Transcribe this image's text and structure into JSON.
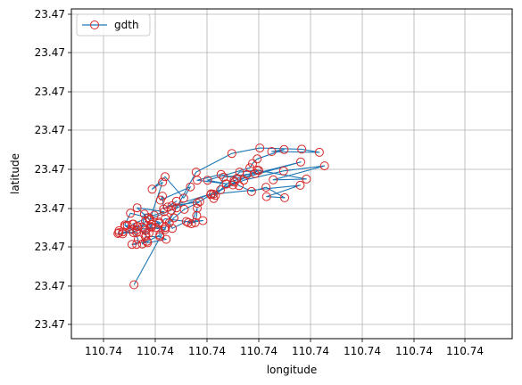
{
  "chart_data": {
    "type": "line",
    "xlabel": "longitude",
    "ylabel": "latitude",
    "x_tick_labels": [
      "110.74",
      "110.74",
      "110.74",
      "110.74",
      "110.74",
      "110.74",
      "110.74",
      "110.74"
    ],
    "y_tick_labels": [
      "23.47",
      "23.47",
      "23.47",
      "23.47",
      "23.47",
      "23.47",
      "23.47",
      "23.47",
      "23.47"
    ],
    "grid": true,
    "legend_position": "top-left",
    "line_color": "#1f77b4",
    "marker_color": "#d62728",
    "series": [
      {
        "name": "gdth",
        "points": [
          [
            0.59,
            1.02
          ],
          [
            1.79,
            3.92
          ],
          [
            2.48,
            4.4
          ],
          [
            3.02,
            4.54
          ],
          [
            3.83,
            4.51
          ],
          [
            4.17,
            4.43
          ],
          [
            3.25,
            4.45
          ],
          [
            3.49,
            4.5
          ],
          [
            2.97,
            4.26
          ],
          [
            2.88,
            4.14
          ],
          [
            2.83,
            4.03
          ],
          [
            2.01,
            3.71
          ],
          [
            2.37,
            3.62
          ],
          [
            1.81,
            3.71
          ],
          [
            2.27,
            3.86
          ],
          [
            2.58,
            3.76
          ],
          [
            3.0,
            3.96
          ],
          [
            2.12,
            3.35
          ],
          [
            3.8,
            3.58
          ],
          [
            3.15,
            3.29
          ],
          [
            3.5,
            3.26
          ],
          [
            3.14,
            3.53
          ],
          [
            2.86,
            3.42
          ],
          [
            2.62,
            3.57
          ],
          [
            2.53,
            3.66
          ],
          [
            2.26,
            3.46
          ],
          [
            2.5,
            3.59
          ],
          [
            2.08,
            3.36
          ],
          [
            1.32,
            3.05
          ],
          [
            1.86,
            3.16
          ],
          [
            1.24,
            3.02
          ],
          [
            1.41,
            3.17
          ],
          [
            1.16,
            2.97
          ],
          [
            1.14,
            3.3
          ],
          [
            1.1,
            3.2
          ],
          [
            1.68,
            3.54
          ],
          [
            1.55,
            3.25
          ],
          [
            1.19,
            3.8
          ],
          [
            0.94,
            3.48
          ],
          [
            1.14,
            3.66
          ],
          [
            0.9,
            2.71
          ],
          [
            1.31,
            2.94
          ],
          [
            1.41,
            3.0
          ],
          [
            2.71,
            3.71
          ],
          [
            3.48,
            3.95
          ],
          [
            4.27,
            4.08
          ],
          [
            3.28,
            3.72
          ],
          [
            3.92,
            3.74
          ],
          [
            2.97,
            3.97
          ],
          [
            2.63,
            3.92
          ],
          [
            2.16,
            3.32
          ],
          [
            2.37,
            3.61
          ],
          [
            2.52,
            3.7
          ],
          [
            3.81,
            4.18
          ],
          [
            2.93,
            3.88
          ],
          [
            2.77,
            3.86
          ],
          [
            2.32,
            3.79
          ],
          [
            2.13,
            3.24
          ],
          [
            2.07,
            3.34
          ],
          [
            1.81,
            3.12
          ],
          [
            1.56,
            2.96
          ],
          [
            1.36,
            2.74
          ],
          [
            1.36,
            2.74
          ],
          [
            1.27,
            2.61
          ],
          [
            1.33,
            2.47
          ],
          [
            1.6,
            2.65
          ],
          [
            1.92,
            2.67
          ],
          [
            1.64,
            2.62
          ],
          [
            1.7,
            2.59
          ],
          [
            1.81,
            2.99
          ],
          [
            1.8,
            2.8
          ],
          [
            1.77,
            2.62
          ],
          [
            1.19,
            2.72
          ],
          [
            1.01,
            2.49
          ],
          [
            0.92,
            2.49
          ],
          [
            1.19,
            2.44
          ],
          [
            1.2,
            2.5
          ],
          [
            1.19,
            2.49
          ],
          [
            0.55,
            2.44
          ],
          [
            0.67,
            2.19
          ],
          [
            0.64,
            2.06
          ],
          [
            0.55,
            2.06
          ],
          [
            0.84,
            2.14
          ],
          [
            0.85,
            2.1
          ],
          [
            1.21,
            2.19
          ],
          [
            1.09,
            2.26
          ],
          [
            0.81,
            2.26
          ],
          [
            0.75,
            2.07
          ],
          [
            1.09,
            2.3
          ],
          [
            1.07,
            2.6
          ],
          [
            0.66,
            2.52
          ],
          [
            0.64,
            2.43
          ],
          [
            0.88,
            2.35
          ],
          [
            0.93,
            2.57
          ],
          [
            1.08,
            2.63
          ],
          [
            0.89,
            2.69
          ],
          [
            0.65,
            3.0
          ],
          [
            1.17,
            2.9
          ],
          [
            0.98,
            2.81
          ],
          [
            0.79,
            2.84
          ],
          [
            0.75,
            2.51
          ],
          [
            0.81,
            2.66
          ],
          [
            0.91,
            2.52
          ],
          [
            0.81,
            2.41
          ],
          [
            0.82,
            2.3
          ],
          [
            0.58,
            2.58
          ],
          [
            0.56,
            2.58
          ],
          [
            0.87,
            2.75
          ],
          [
            0.52,
            2.86
          ],
          [
            0.41,
            2.56
          ],
          [
            0.64,
            2.36
          ],
          [
            0.42,
            2.53
          ],
          [
            0.46,
            2.55
          ],
          [
            0.65,
            2.52
          ],
          [
            0.37,
            2.33
          ],
          [
            0.37,
            2.38
          ],
          [
            0.58,
            2.36
          ],
          [
            0.28,
            2.34
          ],
          [
            0.3,
            2.41
          ],
          [
            0.3,
            2.36
          ]
        ]
      }
    ]
  }
}
